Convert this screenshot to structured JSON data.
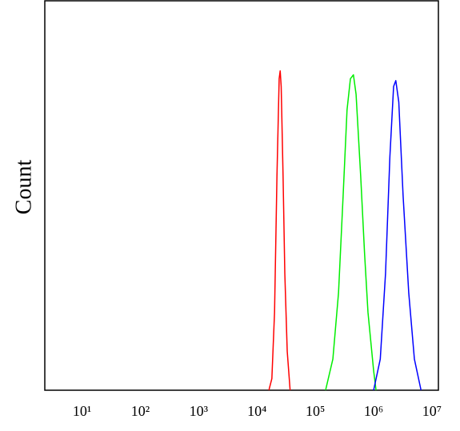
{
  "chart_data": {
    "type": "line",
    "y_label": "Count",
    "xscale": "log",
    "xlim": [
      2.3,
      12900000
    ],
    "ylim": [
      0,
      100
    ],
    "xticks": [
      {
        "value": 10,
        "label": "10¹"
      },
      {
        "value": 100,
        "label": "10²"
      },
      {
        "value": 1000,
        "label": "10³"
      },
      {
        "value": 10000,
        "label": "10⁴"
      },
      {
        "value": 100000,
        "label": "10⁵"
      },
      {
        "value": 1000000,
        "label": "10⁶"
      },
      {
        "value": 10000000,
        "label": "10⁷"
      }
    ],
    "series": [
      {
        "color": "#ff0000",
        "x": [
          16000,
          18000,
          20000,
          22000,
          24000,
          25000,
          26000,
          28000,
          30000,
          33000,
          37000
        ],
        "values": [
          0,
          3,
          20,
          55,
          80,
          82,
          78,
          55,
          30,
          10,
          0
        ]
      },
      {
        "color": "#00ee00",
        "x": [
          150000,
          200000,
          250000,
          300000,
          350000,
          400000,
          450000,
          500000,
          600000,
          700000,
          800000,
          1000000,
          1100000
        ],
        "values": [
          0,
          8,
          25,
          50,
          72,
          80,
          81,
          76,
          55,
          35,
          20,
          5,
          0
        ]
      },
      {
        "color": "#0000ff",
        "x": [
          1000000,
          1300000,
          1600000,
          1900000,
          2200000,
          2400000,
          2700000,
          3200000,
          4000000,
          5000000,
          6500000
        ],
        "values": [
          0,
          8,
          30,
          60,
          78,
          79.5,
          74,
          50,
          25,
          8,
          0
        ]
      }
    ]
  }
}
